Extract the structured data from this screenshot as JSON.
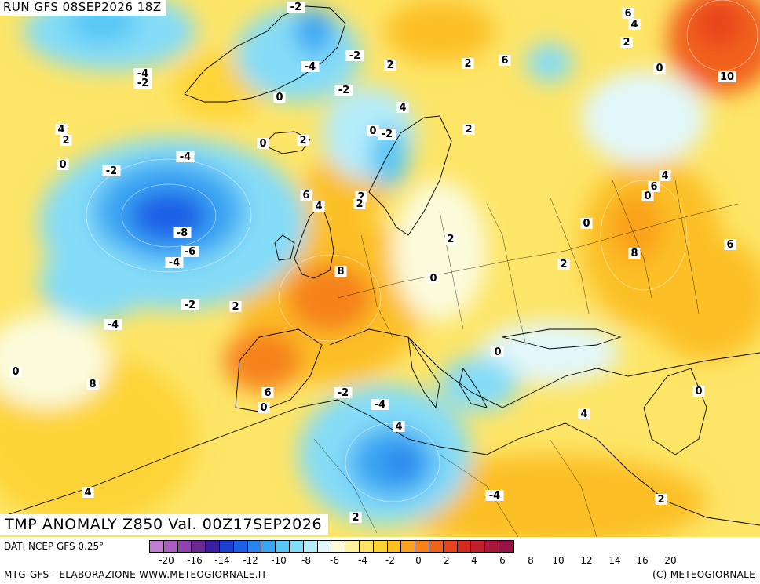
{
  "header": {
    "run": "RUN GFS 08SEP2026 18Z"
  },
  "title": {
    "text": "TMP ANOMALY Z850 Val. 00Z17SEP2026"
  },
  "source": {
    "text": "DATI NCEP GFS 0.25°"
  },
  "footer": {
    "left": "MTG-GFS - ELABORAZIONE WWW.METEOGIORNALE.IT",
    "right": "(C) METEOGIORNALE"
  },
  "map": {
    "region": "Europe / North Atlantic / North Africa",
    "anomaly_labels": [
      {
        "v": "-2"
      },
      {
        "v": "6"
      },
      {
        "v": "4"
      },
      {
        "v": "2"
      },
      {
        "v": "0"
      },
      {
        "v": "-4"
      },
      {
        "v": "-2"
      },
      {
        "v": "2"
      },
      {
        "v": "2"
      },
      {
        "v": "6"
      },
      {
        "v": "10"
      },
      {
        "v": "-4"
      },
      {
        "v": "-2"
      },
      {
        "v": "0"
      },
      {
        "v": "-2"
      },
      {
        "v": "4"
      },
      {
        "v": "0"
      },
      {
        "v": "-2"
      },
      {
        "v": "2"
      },
      {
        "v": "4"
      },
      {
        "v": "2"
      },
      {
        "v": "0"
      },
      {
        "v": "2"
      },
      {
        "v": "0"
      },
      {
        "v": "-4"
      },
      {
        "v": "-2"
      },
      {
        "v": "4"
      },
      {
        "v": "6"
      },
      {
        "v": "0"
      },
      {
        "v": "2"
      },
      {
        "v": "2"
      },
      {
        "v": "6"
      },
      {
        "v": "4"
      },
      {
        "v": "-8"
      },
      {
        "v": "-6"
      },
      {
        "v": "-4"
      },
      {
        "v": "0"
      },
      {
        "v": "2"
      },
      {
        "v": "6"
      },
      {
        "v": "8"
      },
      {
        "v": "2"
      },
      {
        "v": "8"
      },
      {
        "v": "0"
      },
      {
        "v": "-2"
      },
      {
        "v": "2"
      },
      {
        "v": "-4"
      },
      {
        "v": "0"
      },
      {
        "v": "0"
      },
      {
        "v": "8"
      },
      {
        "v": "6"
      },
      {
        "v": "0"
      },
      {
        "v": "-2"
      },
      {
        "v": "-4"
      },
      {
        "v": "4"
      },
      {
        "v": "0"
      },
      {
        "v": "4"
      },
      {
        "v": "4"
      },
      {
        "v": "-4"
      },
      {
        "v": "2"
      },
      {
        "v": "2"
      }
    ]
  },
  "legend": {
    "colors": [
      "#c07fd0",
      "#a85fbe",
      "#8e44ad",
      "#6b2a8e",
      "#3a1f9e",
      "#1c3fd0",
      "#1f5fe6",
      "#2b83ee",
      "#3aa6f3",
      "#56c6f6",
      "#84dcf8",
      "#b6ecfa",
      "#e2f7fb",
      "#fbfbdc",
      "#fdf3a0",
      "#fde567",
      "#fdd438",
      "#fcc027",
      "#faa21f",
      "#f6821b",
      "#f1621a",
      "#e8421c",
      "#d52a20",
      "#c01f2e",
      "#a8163a",
      "#941446"
    ],
    "ticks": [
      "-20",
      "-16",
      "-14",
      "-12",
      "-10",
      "-8",
      "-6",
      "-4",
      "-2",
      "0",
      "2",
      "4",
      "6",
      "8",
      "10",
      "12",
      "14",
      "16",
      "20"
    ],
    "unit": "°"
  }
}
